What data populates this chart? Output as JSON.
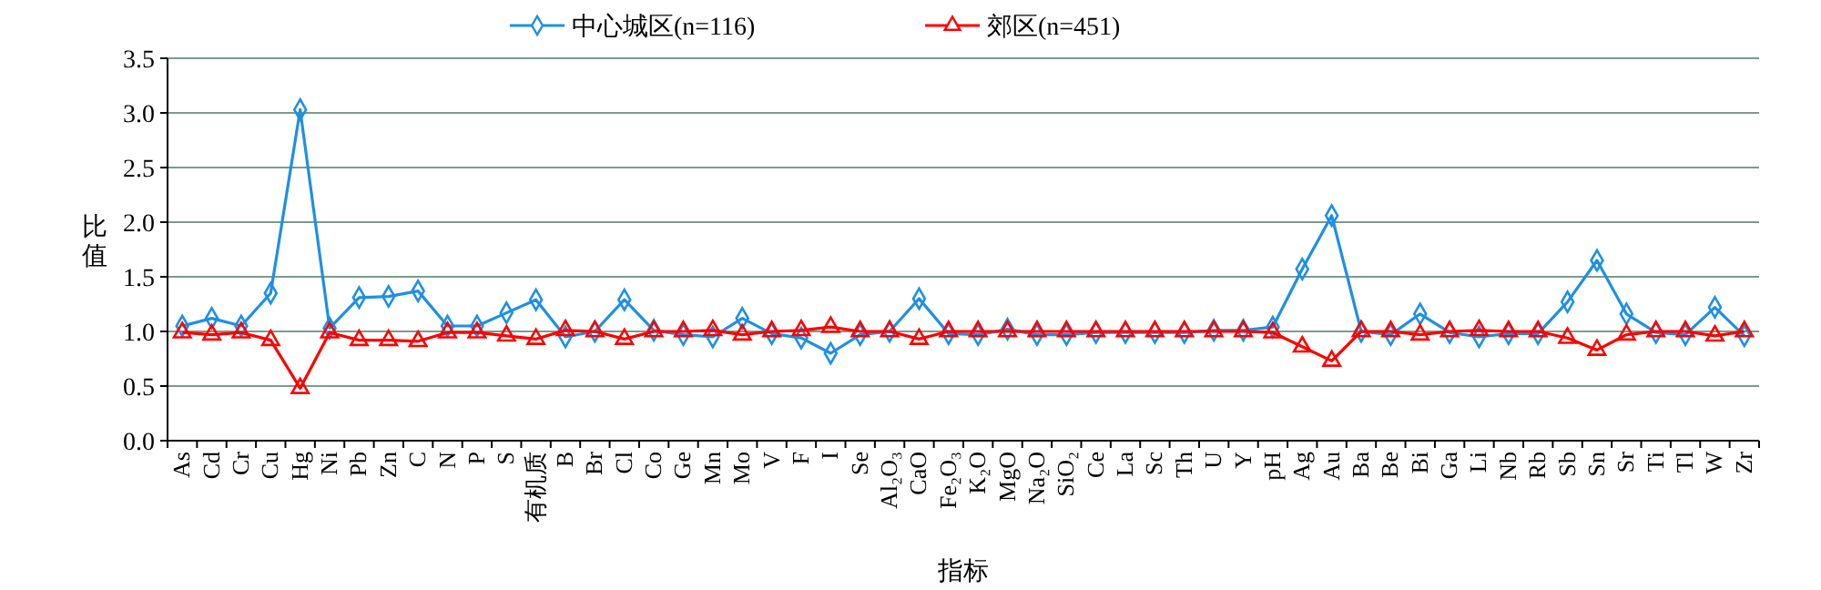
{
  "chart_data": {
    "type": "line",
    "xlabel": "指标",
    "ylabel": "比值",
    "categories": [
      "As",
      "Cd",
      "Cr",
      "Cu",
      "Hg",
      "Ni",
      "Pb",
      "Zn",
      "C",
      "N",
      "P",
      "S",
      "有机质",
      "B",
      "Br",
      "Cl",
      "Co",
      "Ge",
      "Mn",
      "Mo",
      "V",
      "F",
      "I",
      "Se",
      "Al₂O₃",
      "CaO",
      "Fe₂O₃",
      "K₂O",
      "MgO",
      "Na₂O",
      "SiO₂",
      "Ce",
      "La",
      "Sc",
      "Th",
      "U",
      "Y",
      "pH",
      "Ag",
      "Au",
      "Ba",
      "Be",
      "Bi",
      "Ga",
      "Li",
      "Nb",
      "Rb",
      "Sb",
      "Sn",
      "Sr",
      "Ti",
      "Tl",
      "W",
      "Zr"
    ],
    "series": [
      {
        "name": "中心城区(n=116)",
        "color": "#1e8fe6",
        "marker": "diamond",
        "values": [
          1.05,
          1.12,
          1.05,
          1.35,
          3.03,
          1.03,
          1.31,
          1.32,
          1.37,
          1.05,
          1.05,
          1.17,
          1.29,
          0.95,
          1.0,
          1.29,
          1.01,
          0.97,
          0.95,
          1.12,
          0.98,
          0.94,
          0.8,
          0.97,
          1.0,
          1.3,
          0.98,
          0.97,
          1.02,
          0.97,
          0.97,
          0.99,
          0.99,
          0.99,
          0.99,
          1.01,
          1.01,
          1.04,
          1.57,
          2.06,
          1.0,
          0.97,
          1.16,
          0.99,
          0.95,
          0.98,
          0.98,
          1.27,
          1.65,
          1.16,
          0.99,
          0.97,
          1.22,
          0.96
        ]
      },
      {
        "name": "郊区(n=451)",
        "color": "#ff0000",
        "marker": "triangle",
        "values": [
          0.99,
          0.97,
          0.99,
          0.92,
          0.48,
          0.99,
          0.92,
          0.92,
          0.91,
          0.99,
          0.99,
          0.96,
          0.93,
          1.01,
          1.0,
          0.93,
          1.0,
          1.0,
          1.01,
          0.97,
          1.0,
          1.01,
          1.04,
          1.0,
          1.0,
          0.93,
          1.0,
          1.0,
          1.0,
          1.0,
          1.0,
          1.0,
          1.0,
          1.0,
          1.0,
          1.0,
          1.0,
          0.99,
          0.86,
          0.73,
          1.0,
          1.0,
          0.97,
          1.0,
          1.01,
          1.0,
          1.0,
          0.94,
          0.83,
          0.97,
          1.0,
          1.0,
          0.96,
          1.0
        ]
      }
    ],
    "ylim": [
      0,
      3.5
    ],
    "yticks": [
      {
        "value": 0,
        "label": "0.0"
      },
      {
        "value": 0.5,
        "label": "0.5"
      },
      {
        "value": 1,
        "label": "1.0"
      },
      {
        "value": 1.5,
        "label": "1.5"
      },
      {
        "value": 2,
        "label": "2.0"
      },
      {
        "value": 2.5,
        "label": "2.5"
      },
      {
        "value": 3,
        "label": "3.0"
      },
      {
        "value": 3.5,
        "label": "3.5"
      }
    ],
    "grid": "y",
    "legend": "top"
  }
}
